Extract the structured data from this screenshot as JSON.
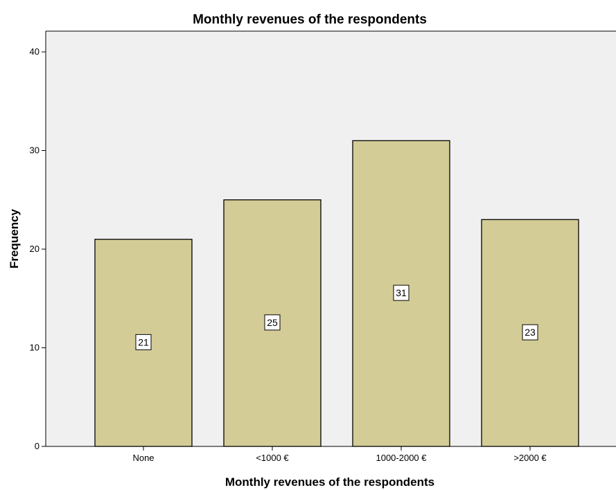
{
  "chart_data": {
    "type": "bar",
    "title": "Monthly revenues of the respondents",
    "xlabel": "Monthly revenues of the respondents",
    "ylabel": "Frequency",
    "categories": [
      "None",
      "<1000 €",
      "1000-2000 €",
      ">2000 €"
    ],
    "values": [
      21,
      25,
      31,
      23
    ],
    "data_labels": [
      "21",
      "25",
      "31",
      "23"
    ],
    "ylim": [
      0,
      40
    ],
    "yticks": [
      0,
      10,
      20,
      30,
      40
    ],
    "ytick_labels": [
      "0",
      "10",
      "20",
      "30",
      "40"
    ],
    "grid": false,
    "legend": "none",
    "colors": {
      "bar_fill": "#d4cc96",
      "bar_stroke": "#000000",
      "plot_background": "#f0f0f0",
      "page_background": "#ffffff"
    }
  }
}
